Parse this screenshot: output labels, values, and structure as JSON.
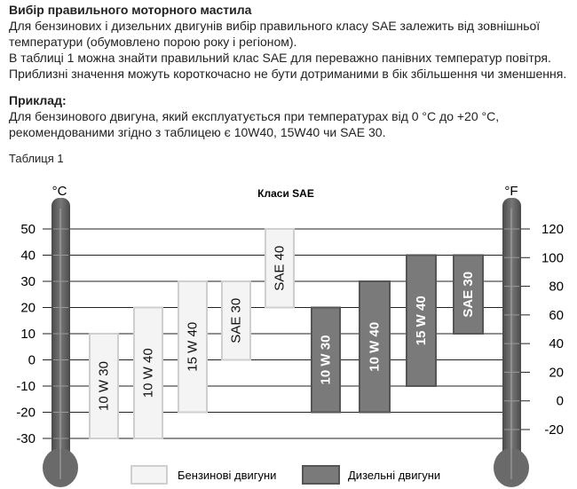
{
  "document": {
    "heading": "Вибір правильного моторного мастила",
    "paragraph_lines": [
      "Для бензинових і дизельних двигунів вибір правильного класу SAE залежить від зовнішньої",
      "температури (обумовлено порою року і регіоном).",
      "В таблиці 1 можна знайти правильний клас SAE для переважно панівних температур повітря.",
      "Приблизні значення можуть короткочасно не бути дотриманими в бік збільшення чи зменшення."
    ],
    "example_heading": "Приклад:",
    "example_lines": [
      "Для бензинового двигуна, який експлуатується при температурах від 0 °C до +20 °C,",
      "рекомендованими згідно з таблицею є 10W40, 15W40 чи SAE 30."
    ],
    "table_caption": "Таблиця 1"
  },
  "chart_data": {
    "type": "range-bar",
    "title": "Класи SAE",
    "left_unit": "°C",
    "right_unit": "°F",
    "celsius_ticks": [
      50,
      40,
      30,
      20,
      10,
      0,
      -10,
      -20,
      -30
    ],
    "fahrenheit_ticks": [
      120,
      100,
      80,
      60,
      40,
      20,
      0,
      -20
    ],
    "ylim_celsius": [
      -30,
      50
    ],
    "grid": true,
    "colors": {
      "petrol": "#f4f4f4",
      "petrol_border": "#cfcfcf",
      "diesel": "#7a7a7a",
      "diesel_border": "#555555",
      "thermometer": "#6a6a6a"
    },
    "series": [
      {
        "name": "Бензинові двигуни",
        "bars": [
          {
            "label": "10 W 30",
            "min": -30,
            "max": 10
          },
          {
            "label": "10 W 40",
            "min": -30,
            "max": 20
          },
          {
            "label": "15 W 40",
            "min": -20,
            "max": 30
          },
          {
            "label": "SAE 30",
            "min": 0,
            "max": 30
          },
          {
            "label": "SAE 40",
            "min": 20,
            "max": 50
          }
        ]
      },
      {
        "name": "Дизельні двигуни",
        "bars": [
          {
            "label": "10 W 30",
            "min": -20,
            "max": 20
          },
          {
            "label": "10 W 40",
            "min": -20,
            "max": 30
          },
          {
            "label": "15 W 40",
            "min": -10,
            "max": 40
          },
          {
            "label": "SAE 30",
            "min": 10,
            "max": 40
          }
        ]
      }
    ],
    "legend": [
      "Бензинові двигуни",
      "Дизельні двигуни"
    ]
  }
}
